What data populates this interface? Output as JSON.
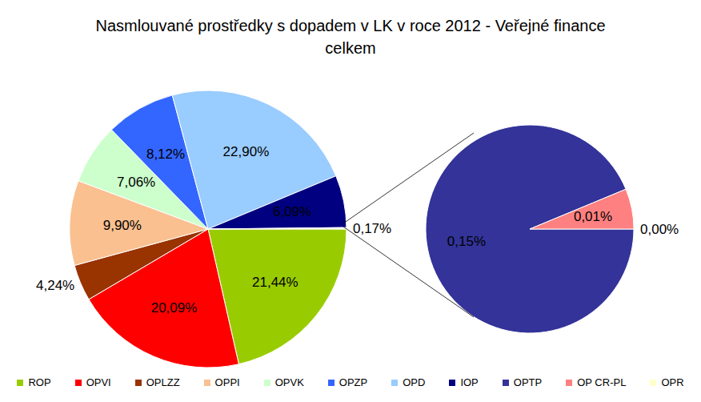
{
  "chart_data": {
    "type": "pie",
    "title": "Nasmlouvané prostředky s dopadem v LK v roce 2012 - Veřejné finance celkem",
    "legend": "bottom",
    "data_labels": true,
    "categories": [
      "ROP",
      "OPVI",
      "OPLZZ",
      "OPPI",
      "OPVK",
      "OPZP",
      "OPD",
      "IOP",
      null
    ],
    "values": [
      21.44,
      20.09,
      4.24,
      9.9,
      7.06,
      8.12,
      22.9,
      6.09,
      0.17
    ],
    "value_labels": [
      "21,44%",
      "20,09%",
      "4,24%",
      "9,90%",
      "7,06%",
      "8,12%",
      "22,90%",
      "6,09%",
      "0,17%"
    ],
    "colors": [
      "#99cc00",
      "#ff0000",
      "#993300",
      "#fac090",
      "#ccffcc",
      "#3366ff",
      "#99ccff",
      "#000080",
      "#ffffff"
    ],
    "secondary": {
      "categories": [
        "OPTP",
        "OP CR-PL",
        "OPR"
      ],
      "values": [
        0.15,
        0.01,
        0.0
      ],
      "value_labels": [
        "0,15%",
        "0,01%",
        "0,00%"
      ],
      "colors": [
        "#333399",
        "#ff8080",
        "#ffffcc"
      ]
    }
  }
}
